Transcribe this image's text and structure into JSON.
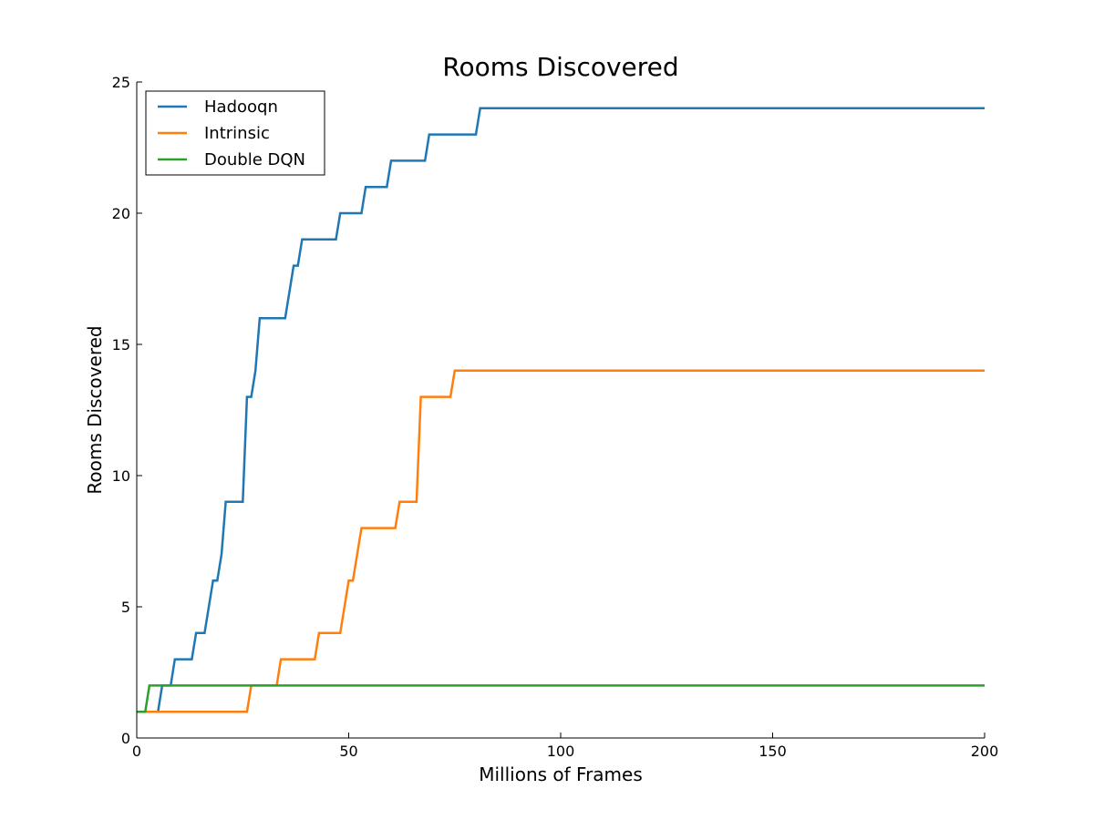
{
  "chart_data": {
    "type": "line",
    "title": "Rooms Discovered",
    "xlabel": "Millions of Frames",
    "ylabel": "Rooms Discovered",
    "xlim": [
      0,
      200
    ],
    "ylim": [
      0,
      25
    ],
    "xticks": [
      0,
      50,
      100,
      150,
      200
    ],
    "yticks": [
      0,
      5,
      10,
      15,
      20,
      25
    ],
    "grid": false,
    "legend_position": "top-left",
    "series": [
      {
        "name": "Hadooqn",
        "color": "#1f77b4",
        "points": [
          [
            0,
            1
          ],
          [
            5,
            1
          ],
          [
            6,
            2
          ],
          [
            8,
            2
          ],
          [
            9,
            3
          ],
          [
            13,
            3
          ],
          [
            14,
            4
          ],
          [
            16,
            4
          ],
          [
            18,
            6
          ],
          [
            19,
            6
          ],
          [
            20,
            7
          ],
          [
            21,
            9
          ],
          [
            25,
            9
          ],
          [
            26,
            13
          ],
          [
            27,
            13
          ],
          [
            28,
            14
          ],
          [
            29,
            16
          ],
          [
            35,
            16
          ],
          [
            37,
            18
          ],
          [
            38,
            18
          ],
          [
            39,
            19
          ],
          [
            47,
            19
          ],
          [
            48,
            20
          ],
          [
            53,
            20
          ],
          [
            54,
            21
          ],
          [
            59,
            21
          ],
          [
            60,
            22
          ],
          [
            68,
            22
          ],
          [
            69,
            23
          ],
          [
            80,
            23
          ],
          [
            81,
            24
          ],
          [
            200,
            24
          ]
        ]
      },
      {
        "name": "Intrinsic",
        "color": "#ff7f0e",
        "points": [
          [
            0,
            1
          ],
          [
            26,
            1
          ],
          [
            27,
            2
          ],
          [
            33,
            2
          ],
          [
            34,
            3
          ],
          [
            42,
            3
          ],
          [
            43,
            4
          ],
          [
            48,
            4
          ],
          [
            50,
            6
          ],
          [
            51,
            6
          ],
          [
            53,
            8
          ],
          [
            61,
            8
          ],
          [
            62,
            9
          ],
          [
            66,
            9
          ],
          [
            67,
            13
          ],
          [
            74,
            13
          ],
          [
            75,
            14
          ],
          [
            200,
            14
          ]
        ]
      },
      {
        "name": "Double DQN",
        "color": "#2ca02c",
        "points": [
          [
            0,
            1
          ],
          [
            2,
            1
          ],
          [
            3,
            2
          ],
          [
            200,
            2
          ]
        ]
      }
    ]
  }
}
